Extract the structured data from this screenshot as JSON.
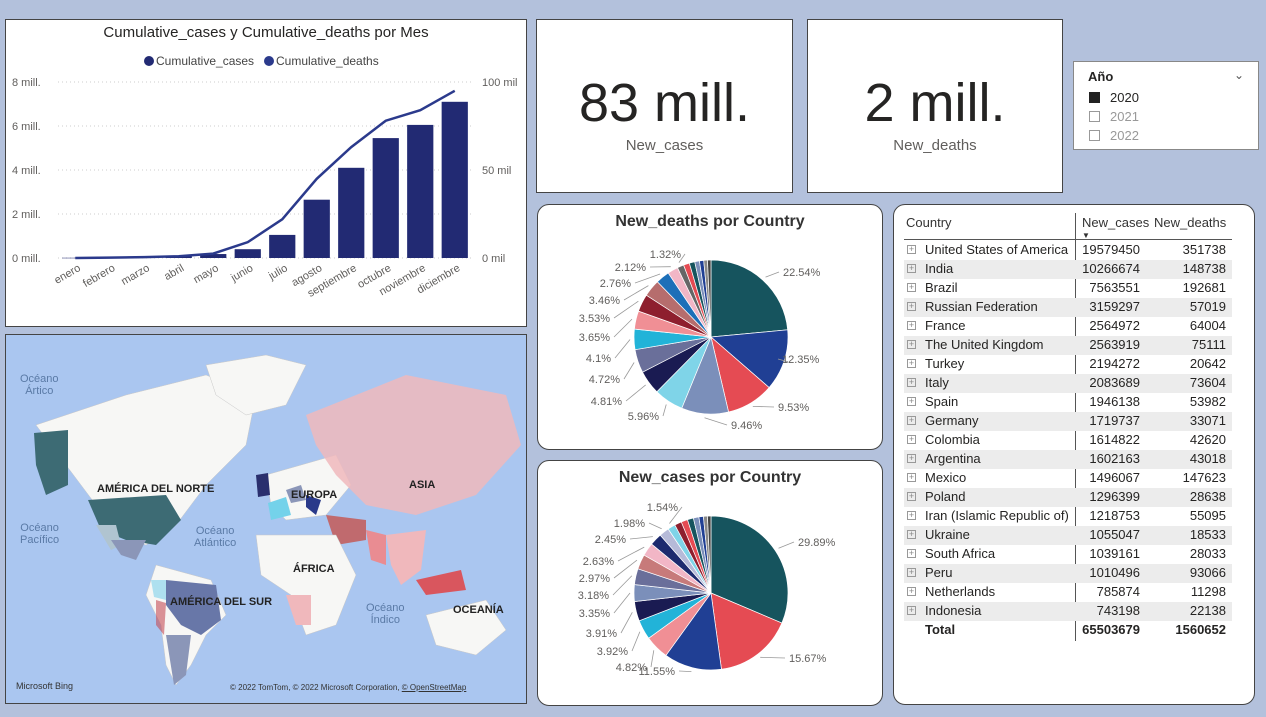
{
  "combo": {
    "title": "Cumulative_cases y Cumulative_deaths por Mes",
    "legend": [
      "Cumulative_cases",
      "Cumulative_deaths"
    ],
    "colors": {
      "bar": "#222a73",
      "line": "#2b3a8c"
    },
    "y_left_ticks": [
      "0 mill.",
      "2 mill.",
      "4 mill.",
      "6 mill.",
      "8 mill."
    ],
    "y_right_ticks": [
      "0 mil",
      "50 mil",
      "100 mil"
    ]
  },
  "chart_data": [
    {
      "type": "bar",
      "title": "Cumulative_cases y Cumulative_deaths por Mes",
      "categories": [
        "enero",
        "febrero",
        "marzo",
        "abril",
        "mayo",
        "junio",
        "julio",
        "agosto",
        "septiembre",
        "octubre",
        "noviembre",
        "diciembre"
      ],
      "series": [
        {
          "name": "Cumulative_cases",
          "axis": "left",
          "values": [
            0.01,
            0.02,
            0.05,
            0.1,
            0.18,
            0.4,
            1.05,
            2.65,
            4.1,
            5.45,
            6.05,
            7.1
          ]
        },
        {
          "name": "Cumulative_deaths",
          "axis": "right",
          "type": "line",
          "values": [
            0,
            0.2,
            0.5,
            1,
            2.5,
            9,
            22,
            45,
            63,
            78,
            84,
            95
          ]
        }
      ],
      "ylim_left": [
        0,
        8
      ],
      "ylim_right": [
        0,
        100
      ]
    },
    {
      "type": "pie",
      "title": "New_deaths por Country",
      "values": [
        22.54,
        12.35,
        9.53,
        9.46,
        5.96,
        4.81,
        4.72,
        4.1,
        3.65,
        3.53,
        3.46,
        2.76,
        2.12,
        1.32,
        1.2,
        1.1,
        0.95,
        0.85,
        0.75,
        0.7
      ],
      "labels_shown": [
        "22.54%",
        "12.35%",
        "9.53%",
        "9.46%",
        "5.96%",
        "4.81%",
        "4.72%",
        "4.1%",
        "3.65%",
        "3.53%",
        "3.46%",
        "2.76%",
        "2.12%",
        "1.32%"
      ],
      "colors": [
        "#16545e",
        "#203f94",
        "#e54b53",
        "#7b8fba",
        "#7fd4e8",
        "#1a1b52",
        "#6a6f9a",
        "#22b3d8",
        "#f08f95",
        "#8e1f2e",
        "#b66d6d",
        "#1d6fb8",
        "#f2b6c6",
        "#666666",
        "#e54b53",
        "#16545e",
        "#7b8fba",
        "#203f94",
        "#888888",
        "#444444"
      ]
    },
    {
      "type": "pie",
      "title": "New_cases por Country",
      "values": [
        29.89,
        15.67,
        11.55,
        4.82,
        3.92,
        3.91,
        3.35,
        3.18,
        2.97,
        2.63,
        2.45,
        1.98,
        1.54,
        1.4,
        1.3,
        1.2,
        1.1,
        0.9,
        0.8,
        0.7
      ],
      "labels_shown": [
        "29.89%",
        "15.67%",
        "11.55%",
        "4.82%",
        "3.92%",
        "3.91%",
        "3.35%",
        "3.18%",
        "2.97%",
        "2.63%",
        "2.45%",
        "1.98%",
        "1.54%"
      ],
      "colors": [
        "#16545e",
        "#e54b53",
        "#203f94",
        "#f08f95",
        "#22b3d8",
        "#1a1b52",
        "#7b8fba",
        "#6a6f9a",
        "#c77a7a",
        "#f2b6c6",
        "#1d2a6e",
        "#b6bad8",
        "#7fd4e8",
        "#8e1f2e",
        "#e54b53",
        "#16545e",
        "#7b8fba",
        "#203f94",
        "#888888",
        "#444444"
      ]
    }
  ],
  "map": {
    "labels": {
      "oceano_artico": "Océano\nÁrtico",
      "oceano_pacifico": "Océano\nPacífico",
      "oceano_atlantico": "Océano\nAtlántico",
      "oceano_indico": "Océano\nÍndico",
      "america_norte": "AMÉRICA DEL NORTE",
      "america_sur": "AMÉRICA DEL SUR",
      "europa": "EUROPA",
      "asia": "ASIA",
      "africa": "ÁFRICA",
      "oceania": "OCEANÍA"
    },
    "bing": "Microsoft Bing",
    "copyright": "© 2022 TomTom, © 2022 Microsoft Corporation,",
    "osm": "© OpenStreetMap"
  },
  "cards": [
    {
      "value": "83 mill.",
      "label": "New_cases"
    },
    {
      "value": "2 mill.",
      "label": "New_deaths"
    }
  ],
  "slicer": {
    "title": "Año",
    "options": [
      {
        "label": "2020",
        "checked": true
      },
      {
        "label": "2021",
        "checked": false
      },
      {
        "label": "2022",
        "checked": false
      }
    ]
  },
  "table": {
    "headers": [
      "Country",
      "New_cases",
      "New_deaths"
    ],
    "rows": [
      [
        "United States of America",
        "19579450",
        "351738"
      ],
      [
        "India",
        "10266674",
        "148738"
      ],
      [
        "Brazil",
        "7563551",
        "192681"
      ],
      [
        "Russian Federation",
        "3159297",
        "57019"
      ],
      [
        "France",
        "2564972",
        "64004"
      ],
      [
        "The United Kingdom",
        "2563919",
        "75111"
      ],
      [
        "Turkey",
        "2194272",
        "20642"
      ],
      [
        "Italy",
        "2083689",
        "73604"
      ],
      [
        "Spain",
        "1946138",
        "53982"
      ],
      [
        "Germany",
        "1719737",
        "33071"
      ],
      [
        "Colombia",
        "1614822",
        "42620"
      ],
      [
        "Argentina",
        "1602163",
        "43018"
      ],
      [
        "Mexico",
        "1496067",
        "147623"
      ],
      [
        "Poland",
        "1296399",
        "28638"
      ],
      [
        "Iran (Islamic Republic of)",
        "1218753",
        "55095"
      ],
      [
        "Ukraine",
        "1055047",
        "18533"
      ],
      [
        "South Africa",
        "1039161",
        "28033"
      ],
      [
        "Peru",
        "1010496",
        "93066"
      ],
      [
        "Netherlands",
        "785874",
        "11298"
      ],
      [
        "Indonesia",
        "743198",
        "22138"
      ]
    ],
    "total": [
      "Total",
      "65503679",
      "1560652"
    ]
  }
}
